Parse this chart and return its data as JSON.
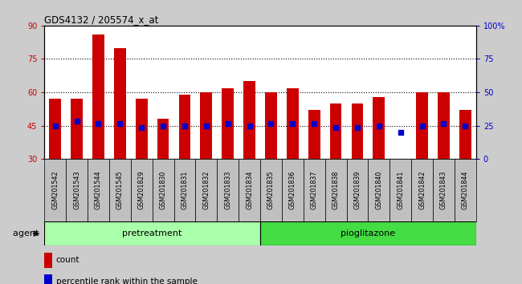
{
  "title": "GDS4132 / 205574_x_at",
  "samples": [
    "GSM201542",
    "GSM201543",
    "GSM201544",
    "GSM201545",
    "GSM201829",
    "GSM201830",
    "GSM201831",
    "GSM201832",
    "GSM201833",
    "GSM201834",
    "GSM201835",
    "GSM201836",
    "GSM201837",
    "GSM201838",
    "GSM201839",
    "GSM201840",
    "GSM201841",
    "GSM201842",
    "GSM201843",
    "GSM201844"
  ],
  "bar_heights": [
    57,
    57,
    86,
    80,
    57,
    48,
    59,
    60,
    62,
    65,
    60,
    62,
    52,
    55,
    55,
    58,
    30,
    60,
    60,
    52
  ],
  "bar_color": "#cc0000",
  "bar_bottom": 30,
  "dot_values": [
    45,
    47,
    46,
    46,
    44,
    45,
    45,
    45,
    46,
    45,
    46,
    46,
    46,
    44,
    44,
    45,
    42,
    45,
    46,
    45
  ],
  "dot_color": "#0000cc",
  "ylim_left": [
    30,
    90
  ],
  "ylim_right": [
    0,
    100
  ],
  "yticks_left": [
    30,
    45,
    60,
    75,
    90
  ],
  "ytick_labels_left": [
    "30",
    "45",
    "60",
    "75",
    "90"
  ],
  "yticks_right": [
    0,
    25,
    50,
    75,
    100
  ],
  "ytick_labels_right": [
    "0",
    "25",
    "50",
    "75",
    "100%"
  ],
  "hlines": [
    45,
    60,
    75
  ],
  "n_pretreatment": 10,
  "n_pioglitazone": 10,
  "pretreatment_color": "#aaffaa",
  "pioglitazone_color": "#44dd44",
  "agent_label": "agent",
  "pretreatment_label": "pretreatment",
  "pioglitazone_label": "pioglitazone",
  "legend_count": "count",
  "legend_percentile": "percentile rank within the sample",
  "bar_width": 0.55,
  "bg_color": "#cccccc",
  "plot_bg_color": "#ffffff",
  "xtick_bg_color": "#c0c0c0",
  "left_axis_color": "#cc0000",
  "right_axis_color": "#0000cc"
}
